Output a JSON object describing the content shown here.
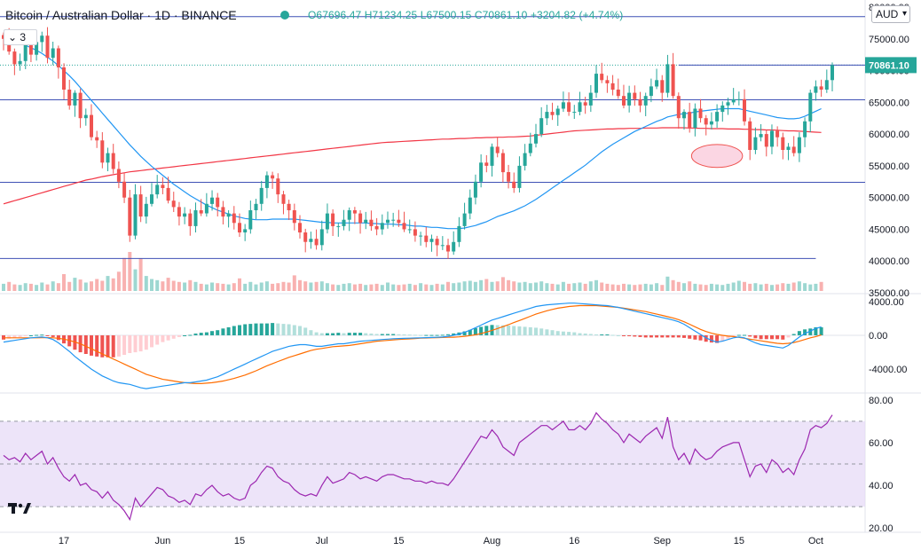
{
  "header": {
    "title": "Bitcoin / Australian Dollar · 1D · BINANCE",
    "ohlc": "O67696.47 H71234.25 L67500.15 C70861.10 +3204.82 (+4.74%)"
  },
  "indicator_toggle": "3",
  "currency": "AUD",
  "colors": {
    "up": "#26a69a",
    "down": "#ef5350",
    "ma_fast": "#2196f3",
    "ma_slow": "#f23645",
    "hline": "#3f51b5",
    "rsi": "#9c27b0",
    "rsi_band": "#e6d9f7",
    "macd_line": "#2196f3",
    "signal_line": "#ff6d00",
    "highlight": "#f8bbd0"
  },
  "chart_data": [
    {
      "type": "candlestick",
      "title": "Bitcoin / Australian Dollar",
      "interval": "1D",
      "exchange": "BINANCE",
      "y_axis_ticks": [
        "35000.00",
        "40000.00",
        "45000.00",
        "50000.00",
        "55000.00",
        "60000.00",
        "65000.00",
        "70000.00",
        "75000.00",
        "80000.00"
      ],
      "x_axis_ticks": [
        "17",
        "Jun",
        "15",
        "Jul",
        "15",
        "Aug",
        "16",
        "Sep",
        "15",
        "Oct"
      ],
      "last_price_label": "70861.10",
      "ylim": [
        35000,
        80000
      ],
      "horizontal_levels": [
        78500,
        70861,
        65400,
        52400,
        40400
      ],
      "highlight_zone": {
        "price_low": 55300,
        "price_high": 57800,
        "from_day": 126,
        "to_day": 134
      },
      "close_series": [
        75000,
        73000,
        71000,
        71500,
        74000,
        72500,
        74500,
        75500,
        72000,
        73500,
        70500,
        67000,
        64500,
        66500,
        62500,
        63000,
        59500,
        59000,
        55500,
        57000,
        54500,
        52500,
        50000,
        44000,
        50500,
        47000,
        49000,
        50500,
        52000,
        51500,
        49500,
        48500,
        47000,
        47500,
        45500,
        48000,
        47500,
        49000,
        50000,
        48500,
        47000,
        47500,
        46000,
        44500,
        45000,
        48000,
        49000,
        51500,
        53500,
        53000,
        50500,
        49000,
        48000,
        46000,
        44500,
        43000,
        43500,
        42500,
        45000,
        47500,
        45500,
        45500,
        46500,
        48000,
        47500,
        46000,
        46500,
        45500,
        45000,
        46000,
        46500,
        46500,
        46000,
        45000,
        45000,
        44000,
        44000,
        43000,
        43500,
        42500,
        42500,
        41500,
        43000,
        45500,
        47500,
        50000,
        52500,
        55500,
        55000,
        58000,
        57000,
        54000,
        52500,
        51500,
        55000,
        57000,
        58500,
        60000,
        62500,
        63500,
        63000,
        64000,
        65000,
        63500,
        63500,
        65000,
        64500,
        66500,
        69500,
        68500,
        68000,
        67000,
        66000,
        64500,
        66500,
        65500,
        64500,
        66000,
        67500,
        68500,
        66500,
        71000,
        66000,
        62500,
        63500,
        61000,
        64000,
        62500,
        61500,
        62000,
        63500,
        64500,
        65000,
        65500,
        65500,
        62000,
        57500,
        59500,
        60000,
        58000,
        60500,
        59500,
        57500,
        58000,
        57000,
        59500,
        62000,
        66500,
        67500,
        67000,
        68500,
        70861
      ],
      "ma_fast": [
        75000,
        74800,
        74500,
        74300,
        74000,
        73600,
        73200,
        72700,
        72100,
        71500,
        70800,
        70000,
        69200,
        68300,
        67300,
        66300,
        65300,
        64300,
        63300,
        62300,
        61300,
        60300,
        59300,
        58300,
        57400,
        56500,
        55700,
        54900,
        54200,
        53500,
        52800,
        52100,
        51500,
        50900,
        50300,
        49800,
        49300,
        48800,
        48400,
        48000,
        47700,
        47400,
        47100,
        46900,
        46700,
        46600,
        46500,
        46500,
        46500,
        46600,
        46600,
        46600,
        46600,
        46600,
        46500,
        46400,
        46300,
        46200,
        46100,
        46100,
        46000,
        46000,
        46000,
        46000,
        46000,
        46000,
        46000,
        45900,
        45900,
        45800,
        45800,
        45800,
        45700,
        45700,
        45600,
        45500,
        45500,
        45400,
        45300,
        45300,
        45200,
        45100,
        45100,
        45100,
        45200,
        45400,
        45600,
        45900,
        46200,
        46600,
        47000,
        47300,
        47600,
        47900,
        48300,
        48700,
        49200,
        49700,
        50300,
        50900,
        51500,
        52100,
        52700,
        53300,
        53900,
        54500,
        55100,
        55800,
        56500,
        57200,
        57800,
        58400,
        58900,
        59400,
        59900,
        60400,
        60800,
        61200,
        61600,
        62000,
        62300,
        62700,
        62900,
        63100,
        63200,
        63300,
        63500,
        63600,
        63700,
        63800,
        63900,
        64000,
        64000,
        64000,
        64000,
        63800,
        63600,
        63400,
        63200,
        63000,
        62800,
        62600,
        62500,
        62400,
        62400,
        62500,
        62800,
        63200,
        63600,
        64000
      ],
      "ma_slow": [
        49000,
        49250,
        49500,
        49750,
        50000,
        50250,
        50500,
        50750,
        51000,
        51250,
        51500,
        51750,
        52000,
        52250,
        52500,
        52750,
        52900,
        53100,
        53300,
        53450,
        53600,
        53750,
        53900,
        54050,
        54150,
        54250,
        54350,
        54450,
        54550,
        54650,
        54750,
        54850,
        54950,
        55050,
        55150,
        55250,
        55350,
        55450,
        55550,
        55650,
        55750,
        55850,
        55950,
        56050,
        56150,
        56250,
        56350,
        56450,
        56550,
        56650,
        56750,
        56850,
        56950,
        57050,
        57150,
        57250,
        57350,
        57450,
        57550,
        57650,
        57750,
        57850,
        57950,
        58050,
        58150,
        58250,
        58350,
        58450,
        58550,
        58650,
        58700,
        58750,
        58800,
        58850,
        58900,
        58950,
        59000,
        59050,
        59100,
        59150,
        59200,
        59200,
        59250,
        59300,
        59300,
        59350,
        59400,
        59400,
        59450,
        59450,
        59500,
        59500,
        59550,
        59550,
        59600,
        59650,
        59700,
        59800,
        59900,
        60000,
        60100,
        60200,
        60300,
        60400,
        60500,
        60550,
        60600,
        60650,
        60700,
        60750,
        60800,
        60800,
        60850,
        60850,
        60900,
        60900,
        60900,
        60950,
        60950,
        60950,
        61000,
        61000,
        61000,
        61000,
        61000,
        60950,
        60950,
        60900,
        60900,
        60850,
        60850,
        60850,
        60800,
        60800,
        60800,
        60750,
        60750,
        60700,
        60700,
        60650,
        60650,
        60600,
        60550,
        60500,
        60500,
        60450,
        60400,
        60350,
        60300,
        60250
      ],
      "volume": [
        1.2,
        1.5,
        1.1,
        1.0,
        1.3,
        1.2,
        1.0,
        1.4,
        1.1,
        1.6,
        1.3,
        2.8,
        1.5,
        2.2,
        1.9,
        1.4,
        1.6,
        2.0,
        1.7,
        2.5,
        2.1,
        3.2,
        5.5,
        6.5,
        3.6,
        5.4,
        2.5,
        2.0,
        1.8,
        1.6,
        2.2,
        1.7,
        1.5,
        1.4,
        1.8,
        1.5,
        1.2,
        1.1,
        1.4,
        1.3,
        1.2,
        1.1,
        1.3,
        2.1,
        1.2,
        1.5,
        1.1,
        1.4,
        1.6,
        1.2,
        1.3,
        1.5,
        1.4,
        2.6,
        1.8,
        1.6,
        1.4,
        1.5,
        1.6,
        1.3,
        1.1,
        1.0,
        1.2,
        1.3,
        1.1,
        1.2,
        1.0,
        1.1,
        1.2,
        1.0,
        1.4,
        1.1,
        1.0,
        1.1,
        1.2,
        1.0,
        1.3,
        1.1,
        1.0,
        1.2,
        1.1,
        1.5,
        1.3,
        1.4,
        1.6,
        1.7,
        1.5,
        1.8,
        2.0,
        1.5,
        1.6,
        2.3,
        1.8,
        1.6,
        1.4,
        1.5,
        1.3,
        1.4,
        1.6,
        1.3,
        1.2,
        1.1,
        1.5,
        1.2,
        1.3,
        1.4,
        1.2,
        1.6,
        1.8,
        1.4,
        1.2,
        1.1,
        1.0,
        1.2,
        1.1,
        1.0,
        1.1,
        1.2,
        1.1,
        1.3,
        1.0,
        2.4,
        1.8,
        1.5,
        1.3,
        1.6,
        1.2,
        1.1,
        1.0,
        1.2,
        1.1,
        1.0,
        1.2,
        1.4,
        1.7,
        1.5,
        1.2,
        1.3,
        1.1,
        1.2,
        1.0,
        1.1,
        1.3,
        1.2,
        1.4,
        1.6,
        1.3,
        1.1,
        1.2,
        1.5
      ]
    },
    {
      "type": "macd",
      "y_axis_ticks": [
        "4000.00",
        "0.00",
        "-4000.00"
      ],
      "ylim": [
        -6500,
        4500
      ],
      "macd": [
        -800,
        -700,
        -600,
        -500,
        -400,
        -300,
        -250,
        -200,
        -300,
        -500,
        -900,
        -1400,
        -1900,
        -2500,
        -3000,
        -3500,
        -4000,
        -4400,
        -4800,
        -5100,
        -5400,
        -5600,
        -5700,
        -5800,
        -6000,
        -6200,
        -6300,
        -6200,
        -6100,
        -6000,
        -5900,
        -5800,
        -5700,
        -5600,
        -5600,
        -5500,
        -5400,
        -5300,
        -5100,
        -4900,
        -4600,
        -4300,
        -4000,
        -3700,
        -3400,
        -3100,
        -2800,
        -2500,
        -2200,
        -1900,
        -1700,
        -1500,
        -1300,
        -1200,
        -1100,
        -1100,
        -1200,
        -1300,
        -1300,
        -1200,
        -1100,
        -1000,
        -1000,
        -900,
        -800,
        -700,
        -650,
        -600,
        -550,
        -500,
        -450,
        -400,
        -380,
        -360,
        -340,
        -320,
        -300,
        -280,
        -260,
        -240,
        -200,
        -120,
        0,
        150,
        350,
        600,
        900,
        1200,
        1500,
        1800,
        2000,
        2200,
        2400,
        2600,
        2800,
        3000,
        3200,
        3400,
        3500,
        3600,
        3650,
        3700,
        3750,
        3800,
        3800,
        3750,
        3700,
        3650,
        3600,
        3550,
        3500,
        3400,
        3300,
        3150,
        3000,
        2850,
        2700,
        2550,
        2400,
        2250,
        2100,
        1950,
        1800,
        1600,
        1300,
        900,
        500,
        100,
        -300,
        -600,
        -800,
        -700,
        -500,
        -300,
        -200,
        -300,
        -600,
        -900,
        -1100,
        -1200,
        -1300,
        -1400,
        -1500,
        -1200,
        -700,
        -200,
        200,
        500,
        800,
        1000
      ],
      "signal": [
        -300,
        -300,
        -300,
        -300,
        -300,
        -300,
        -300,
        -280,
        -280,
        -300,
        -350,
        -450,
        -600,
        -800,
        -1000,
        -1300,
        -1600,
        -1900,
        -2200,
        -2500,
        -2800,
        -3100,
        -3400,
        -3700,
        -4000,
        -4300,
        -4600,
        -4800,
        -5000,
        -5200,
        -5300,
        -5400,
        -5500,
        -5600,
        -5650,
        -5700,
        -5700,
        -5650,
        -5600,
        -5500,
        -5400,
        -5250,
        -5100,
        -4900,
        -4700,
        -4450,
        -4200,
        -3900,
        -3600,
        -3350,
        -3100,
        -2850,
        -2600,
        -2400,
        -2200,
        -2000,
        -1800,
        -1650,
        -1550,
        -1450,
        -1350,
        -1300,
        -1250,
        -1200,
        -1100,
        -1000,
        -900,
        -800,
        -700,
        -650,
        -600,
        -550,
        -500,
        -460,
        -420,
        -380,
        -340,
        -320,
        -300,
        -280,
        -260,
        -240,
        -220,
        -180,
        -120,
        -40,
        60,
        200,
        380,
        580,
        800,
        1020,
        1250,
        1500,
        1750,
        2000,
        2250,
        2500,
        2700,
        2900,
        3050,
        3200,
        3300,
        3400,
        3450,
        3500,
        3500,
        3500,
        3500,
        3450,
        3400,
        3350,
        3300,
        3200,
        3100,
        3000,
        2900,
        2800,
        2650,
        2500,
        2350,
        2200,
        2050,
        1850,
        1600,
        1300,
        1000,
        700,
        450,
        250,
        100,
        0,
        -100,
        -150,
        -250,
        -350,
        -450,
        -550,
        -650,
        -750,
        -850,
        -950,
        -1000,
        -950,
        -850,
        -700,
        -500,
        -300,
        -150,
        50
      ]
    },
    {
      "type": "line",
      "name": "RSI",
      "y_axis_ticks": [
        "80.00",
        "60.00",
        "40.00",
        "20.00"
      ],
      "ylim": [
        18,
        82
      ],
      "band": [
        30,
        70
      ],
      "midline": 50,
      "values": [
        54,
        52,
        53,
        51,
        55,
        52,
        54,
        56,
        50,
        53,
        48,
        44,
        42,
        45,
        40,
        41,
        38,
        37,
        34,
        37,
        33,
        31,
        28,
        24,
        34,
        30,
        33,
        36,
        39,
        38,
        35,
        34,
        32,
        33,
        31,
        36,
        35,
        38,
        40,
        37,
        35,
        36,
        34,
        33,
        34,
        40,
        42,
        46,
        49,
        48,
        44,
        42,
        41,
        38,
        36,
        35,
        36,
        35,
        40,
        44,
        41,
        42,
        43,
        46,
        45,
        43,
        44,
        43,
        42,
        44,
        45,
        45,
        44,
        43,
        43,
        42,
        42,
        41,
        42,
        41,
        41,
        40,
        43,
        47,
        51,
        55,
        59,
        63,
        62,
        66,
        63,
        58,
        56,
        54,
        60,
        62,
        64,
        66,
        68,
        68,
        66,
        68,
        70,
        66,
        66,
        68,
        66,
        69,
        74,
        71,
        69,
        66,
        64,
        60,
        64,
        62,
        60,
        63,
        65,
        67,
        62,
        72,
        58,
        52,
        55,
        50,
        57,
        54,
        52,
        53,
        56,
        58,
        59,
        60,
        60,
        52,
        44,
        49,
        50,
        46,
        52,
        50,
        46,
        48,
        45,
        52,
        57,
        66,
        68,
        67,
        69,
        73
      ]
    }
  ]
}
